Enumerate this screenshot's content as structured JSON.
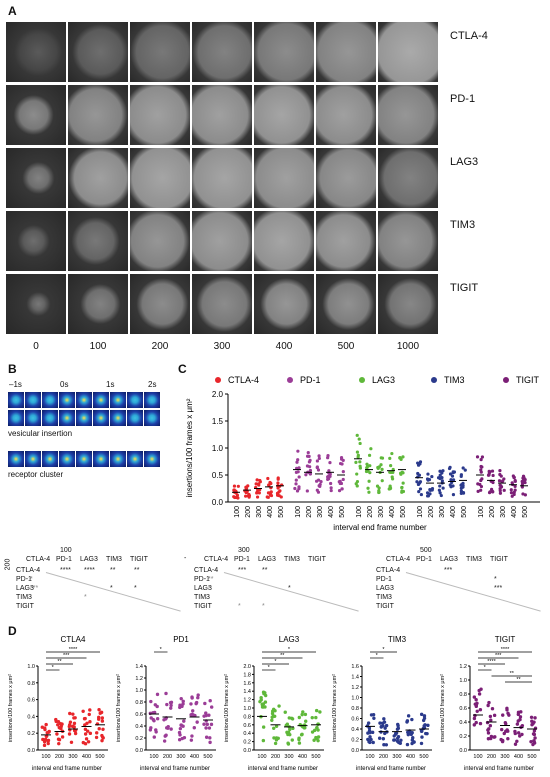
{
  "panelA": {
    "label": "A",
    "rows": [
      "CTLA-4",
      "PD-1",
      "LAG3",
      "TIM3",
      "TIGIT"
    ],
    "frames": [
      "0",
      "100",
      "200",
      "300",
      "400",
      "500",
      "1000"
    ]
  },
  "panelB": {
    "label": "B",
    "times": [
      "–1s",
      "0s",
      "1s",
      "2s"
    ],
    "caption1": "vesicular insertion",
    "caption2": "receptor cluster"
  },
  "panelC": {
    "label": "C",
    "ylabel": "insertions/100 frames x μm²",
    "xlabel": "interval end frame number",
    "legend": [
      {
        "name": "CTLA-4",
        "color": "#e8262b"
      },
      {
        "name": "PD-1",
        "color": "#9b3d97"
      },
      {
        "name": "LAG3",
        "color": "#5fb83a"
      },
      {
        "name": "TIM3",
        "color": "#2b3a8c"
      },
      {
        "name": "TIGIT",
        "color": "#7b1f76"
      }
    ],
    "yticks": [
      "0.0",
      "0.5",
      "1.0",
      "1.5",
      "2.0"
    ],
    "xticks": [
      "100",
      "200",
      "300",
      "400",
      "500"
    ]
  },
  "matrices": [
    {
      "title": "100",
      "corner": "200",
      "cols": [
        "CTLA-4",
        "PD-1",
        "LAG3",
        "TIM3",
        "TIGIT"
      ],
      "rows": [
        "CTLA-4",
        "PD-1",
        "LAG3",
        "TIM3",
        "TIGIT"
      ],
      "stars": [
        {
          "r": 0,
          "c": 1,
          "t": "****"
        },
        {
          "r": 0,
          "c": 2,
          "t": "****"
        },
        {
          "r": 0,
          "c": 3,
          "t": "**"
        },
        {
          "r": 0,
          "c": 4,
          "t": "**"
        },
        {
          "r": 1,
          "c": 0,
          "t": "*",
          "g": true
        },
        {
          "r": 2,
          "c": 0,
          "t": "***",
          "g": true
        },
        {
          "r": 2,
          "c": 3,
          "t": "*"
        },
        {
          "r": 2,
          "c": 4,
          "t": "*"
        },
        {
          "r": 3,
          "c": 2,
          "t": "*",
          "g": true
        }
      ]
    },
    {
      "title": "300",
      "corner": "-",
      "cols": [
        "CTLA-4",
        "PD-1",
        "LAG3",
        "TIM3",
        "TIGIT"
      ],
      "rows": [
        "CTLA-4",
        "PD-1",
        "LAG3",
        "TIM3",
        "TIGIT"
      ],
      "stars": [
        {
          "r": 0,
          "c": 1,
          "t": "***"
        },
        {
          "r": 0,
          "c": 2,
          "t": "**"
        },
        {
          "r": 1,
          "c": 0,
          "t": "**",
          "g": true
        },
        {
          "r": 2,
          "c": 0,
          "t": "*",
          "g": true
        },
        {
          "r": 2,
          "c": 3,
          "t": "*"
        },
        {
          "r": 4,
          "c": 1,
          "t": "*",
          "g": true
        },
        {
          "r": 4,
          "c": 2,
          "t": "*",
          "g": true
        }
      ]
    },
    {
      "title": "500",
      "corner": "",
      "cols": [
        "CTLA-4",
        "PD-1",
        "LAG3",
        "TIM3",
        "TIGIT"
      ],
      "rows": [
        "CTLA-4",
        "PD-1",
        "LAG3",
        "TIM3",
        "TIGIT"
      ],
      "stars": [
        {
          "r": 0,
          "c": 2,
          "t": "***"
        },
        {
          "r": 1,
          "c": 4,
          "t": "*"
        },
        {
          "r": 2,
          "c": 4,
          "t": "***"
        }
      ]
    }
  ],
  "panelD": {
    "label": "D",
    "ylabel": "insertions/100 frames x μm²",
    "xlabel": "interval end frame number",
    "xticks": [
      "100",
      "200",
      "300",
      "400",
      "500"
    ],
    "plots": [
      {
        "title": "CTLA4",
        "color": "#e8262b",
        "yticks": [
          "0.0",
          "0.2",
          "0.4",
          "0.6",
          "0.8",
          "1.0"
        ],
        "ymax": 1.0,
        "sig": [
          {
            "a": 0,
            "b": 4,
            "t": "****"
          },
          {
            "a": 0,
            "b": 3,
            "t": "***"
          },
          {
            "a": 0,
            "b": 2,
            "t": "**"
          },
          {
            "a": 0,
            "b": 1,
            "t": "*"
          }
        ]
      },
      {
        "title": "PD1",
        "color": "#9b3d97",
        "yticks": [
          "0.0",
          "0.2",
          "0.4",
          "0.6",
          "0.8",
          "1.0",
          "1.2",
          "1.4"
        ],
        "ymax": 1.4,
        "sig": [
          {
            "a": 0,
            "b": 1,
            "t": "*"
          }
        ]
      },
      {
        "title": "LAG3",
        "color": "#5fb83a",
        "yticks": [
          "0.0",
          "0.2",
          "0.4",
          "0.6",
          "0.8",
          "1.0",
          "1.2",
          "1.4",
          "1.6",
          "1.8",
          "2.0"
        ],
        "ymax": 2.0,
        "sig": [
          {
            "a": 0,
            "b": 4,
            "t": "*"
          },
          {
            "a": 0,
            "b": 3,
            "t": "**"
          },
          {
            "a": 0,
            "b": 2,
            "t": "*"
          },
          {
            "a": 0,
            "b": 1,
            "t": "*"
          }
        ]
      },
      {
        "title": "TIM3",
        "color": "#2b3a8c",
        "yticks": [
          "0.0",
          "0.2",
          "0.4",
          "0.6",
          "0.8",
          "1.0",
          "1.2",
          "1.4",
          "1.6"
        ],
        "ymax": 1.6,
        "sig": [
          {
            "a": 0,
            "b": 2,
            "t": "*"
          },
          {
            "a": 0,
            "b": 1,
            "t": "*"
          }
        ]
      },
      {
        "title": "TIGIT",
        "color": "#7b1f76",
        "yticks": [
          "0.0",
          "0.2",
          "0.4",
          "0.6",
          "0.8",
          "1.0",
          "1.2"
        ],
        "ymax": 1.2,
        "sig": [
          {
            "a": 0,
            "b": 4,
            "t": "****"
          },
          {
            "a": 0,
            "b": 3,
            "t": "***"
          },
          {
            "a": 0,
            "b": 2,
            "t": "****"
          },
          {
            "a": 0,
            "b": 1,
            "t": "*"
          },
          {
            "a": 1,
            "b": 4,
            "t": "**"
          },
          {
            "a": 2,
            "b": 4,
            "t": "**"
          }
        ]
      }
    ]
  },
  "chart_data": [
    {
      "type": "scatter",
      "title": "",
      "xlabel": "interval end frame number",
      "ylabel": "insertions/100 frames x μm²",
      "ylim": [
        0,
        2.0
      ],
      "categories": [
        "100",
        "200",
        "300",
        "400",
        "500"
      ],
      "series": [
        {
          "name": "CTLA-4",
          "median": [
            0.18,
            0.22,
            0.25,
            0.28,
            0.3
          ]
        },
        {
          "name": "PD-1",
          "median": [
            0.6,
            0.55,
            0.52,
            0.55,
            0.5
          ]
        },
        {
          "name": "LAG3",
          "median": [
            0.8,
            0.6,
            0.55,
            0.58,
            0.6
          ]
        },
        {
          "name": "TIM3",
          "median": [
            0.45,
            0.35,
            0.35,
            0.38,
            0.4
          ]
        },
        {
          "name": "TIGIT",
          "median": [
            0.5,
            0.4,
            0.35,
            0.32,
            0.3
          ]
        }
      ]
    }
  ]
}
